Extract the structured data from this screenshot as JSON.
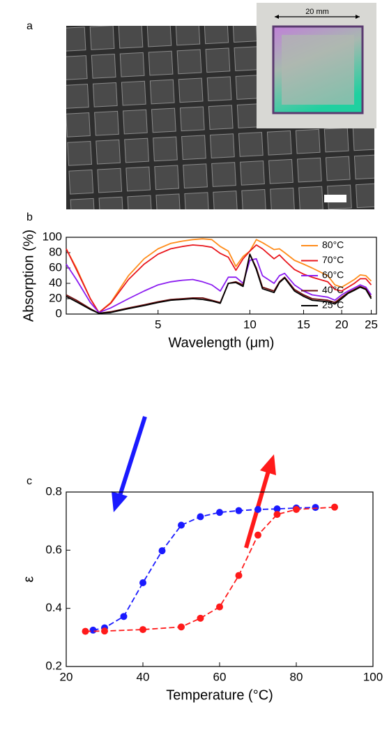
{
  "panel_labels": [
    "a",
    "b",
    "c"
  ],
  "inset_label": "20 mm",
  "chart_data": [
    {
      "type": "line",
      "xlabel": "Wavelength (μm)",
      "ylabel": "Absorption (%)",
      "xscale": "log",
      "xlim": [
        2.5,
        26
      ],
      "ylim": [
        0,
        100
      ],
      "xticks": [
        5,
        10,
        15,
        20,
        25
      ],
      "yticks": [
        0,
        20,
        40,
        60,
        80,
        100
      ],
      "legend": "upper right",
      "x": [
        2.5,
        2.7,
        3.0,
        3.2,
        3.5,
        4,
        4.5,
        5,
        5.5,
        6,
        6.5,
        7,
        7.5,
        8,
        8.5,
        9,
        9.5,
        10,
        10.5,
        11,
        12,
        12.5,
        13,
        14,
        15,
        16,
        18,
        19,
        20,
        21,
        22,
        23,
        24,
        25
      ],
      "series": [
        {
          "name": "80°C",
          "color": "#ff8c1a",
          "values": [
            85,
            60,
            20,
            2,
            15,
            50,
            72,
            85,
            92,
            95,
            97,
            98,
            97,
            88,
            82,
            62,
            75,
            82,
            97,
            93,
            84,
            85,
            80,
            70,
            65,
            60,
            50,
            38,
            35,
            40,
            45,
            51,
            50,
            43
          ]
        },
        {
          "name": "70°C",
          "color": "#e8161c",
          "values": [
            85,
            58,
            20,
            2,
            14,
            45,
            65,
            78,
            85,
            88,
            90,
            89,
            87,
            79,
            74,
            57,
            72,
            82,
            90,
            85,
            72,
            77,
            70,
            58,
            52,
            48,
            42,
            32,
            30,
            35,
            40,
            46,
            46,
            38
          ]
        },
        {
          "name": "60°C",
          "color": "#8b1cf0",
          "values": [
            65,
            45,
            15,
            2,
            8,
            20,
            30,
            38,
            42,
            44,
            45,
            42,
            38,
            30,
            48,
            48,
            40,
            70,
            72,
            50,
            40,
            50,
            53,
            38,
            30,
            25,
            22,
            18,
            25,
            30,
            34,
            38,
            35,
            25
          ]
        },
        {
          "name": "40°C",
          "color": "#6e0e0e",
          "values": [
            25,
            18,
            7,
            1,
            3,
            8,
            12,
            16,
            19,
            20,
            21,
            21,
            18,
            15,
            40,
            42,
            38,
            78,
            60,
            35,
            30,
            42,
            48,
            32,
            25,
            20,
            18,
            15,
            22,
            28,
            32,
            36,
            33,
            22
          ]
        },
        {
          "name": "25°C",
          "color": "#000000",
          "values": [
            23,
            16,
            6,
            1,
            2,
            7,
            11,
            15,
            18,
            19,
            20,
            19,
            17,
            14,
            40,
            41,
            36,
            78,
            58,
            33,
            28,
            41,
            47,
            30,
            23,
            18,
            16,
            13,
            20,
            27,
            31,
            35,
            32,
            20
          ]
        }
      ]
    },
    {
      "type": "line",
      "xlabel": "Temperature (°C)",
      "ylabel": "ε",
      "xlim": [
        20,
        100
      ],
      "ylim": [
        0.2,
        0.8
      ],
      "xticks": [
        20,
        40,
        60,
        80,
        100
      ],
      "yticks": [
        0.2,
        0.4,
        0.6,
        0.8
      ],
      "line_style": "dashed",
      "markers": true,
      "series": [
        {
          "color": "#1a1aff",
          "x": [
            27,
            30,
            35,
            40,
            45,
            50,
            55,
            60,
            65,
            70,
            75,
            80,
            85
          ],
          "values": [
            0.325,
            0.333,
            0.372,
            0.488,
            0.598,
            0.686,
            0.715,
            0.73,
            0.736,
            0.74,
            0.742,
            0.745,
            0.747
          ]
        },
        {
          "color": "#ff1a1a",
          "x": [
            25,
            30,
            40,
            50,
            55,
            60,
            65,
            70,
            75,
            80,
            90
          ],
          "values": [
            0.321,
            0.322,
            0.327,
            0.336,
            0.366,
            0.405,
            0.513,
            0.652,
            0.723,
            0.74,
            0.748
          ]
        }
      ]
    }
  ]
}
